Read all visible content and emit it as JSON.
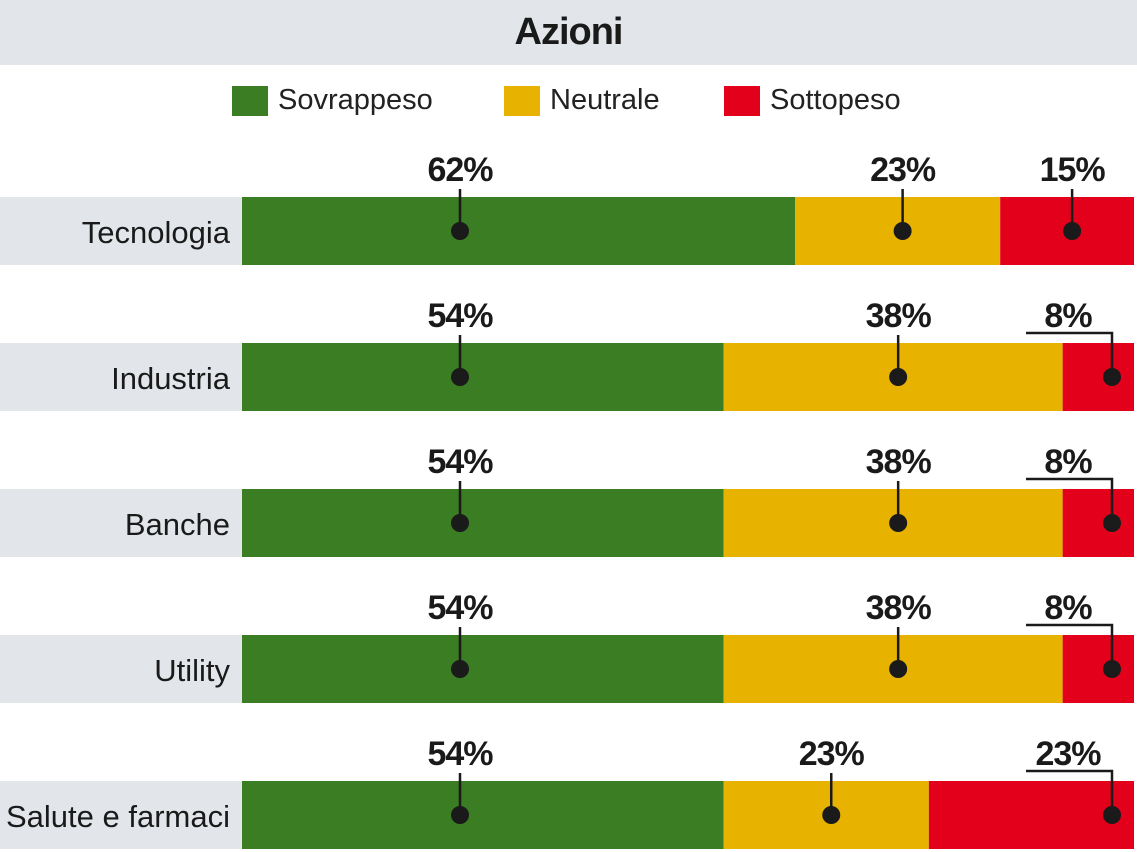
{
  "chart_data": {
    "type": "bar",
    "stacked": true,
    "orientation": "horizontal",
    "title": "Azioni",
    "legend_placement": "top",
    "categories": [
      "Tecnologia",
      "Industria",
      "Banche",
      "Utility",
      "Salute e farmaci"
    ],
    "series": [
      {
        "name": "Sovrappeso",
        "color": "#3a7d22",
        "values": [
          62,
          54,
          54,
          54,
          54
        ]
      },
      {
        "name": "Neutrale",
        "color": "#e8b200",
        "values": [
          23,
          38,
          38,
          38,
          23
        ]
      },
      {
        "name": "Sottopeso",
        "color": "#e2001a",
        "values": [
          15,
          8,
          8,
          8,
          23
        ]
      }
    ],
    "value_suffix": "%",
    "xlim": [
      0,
      100
    ]
  }
}
